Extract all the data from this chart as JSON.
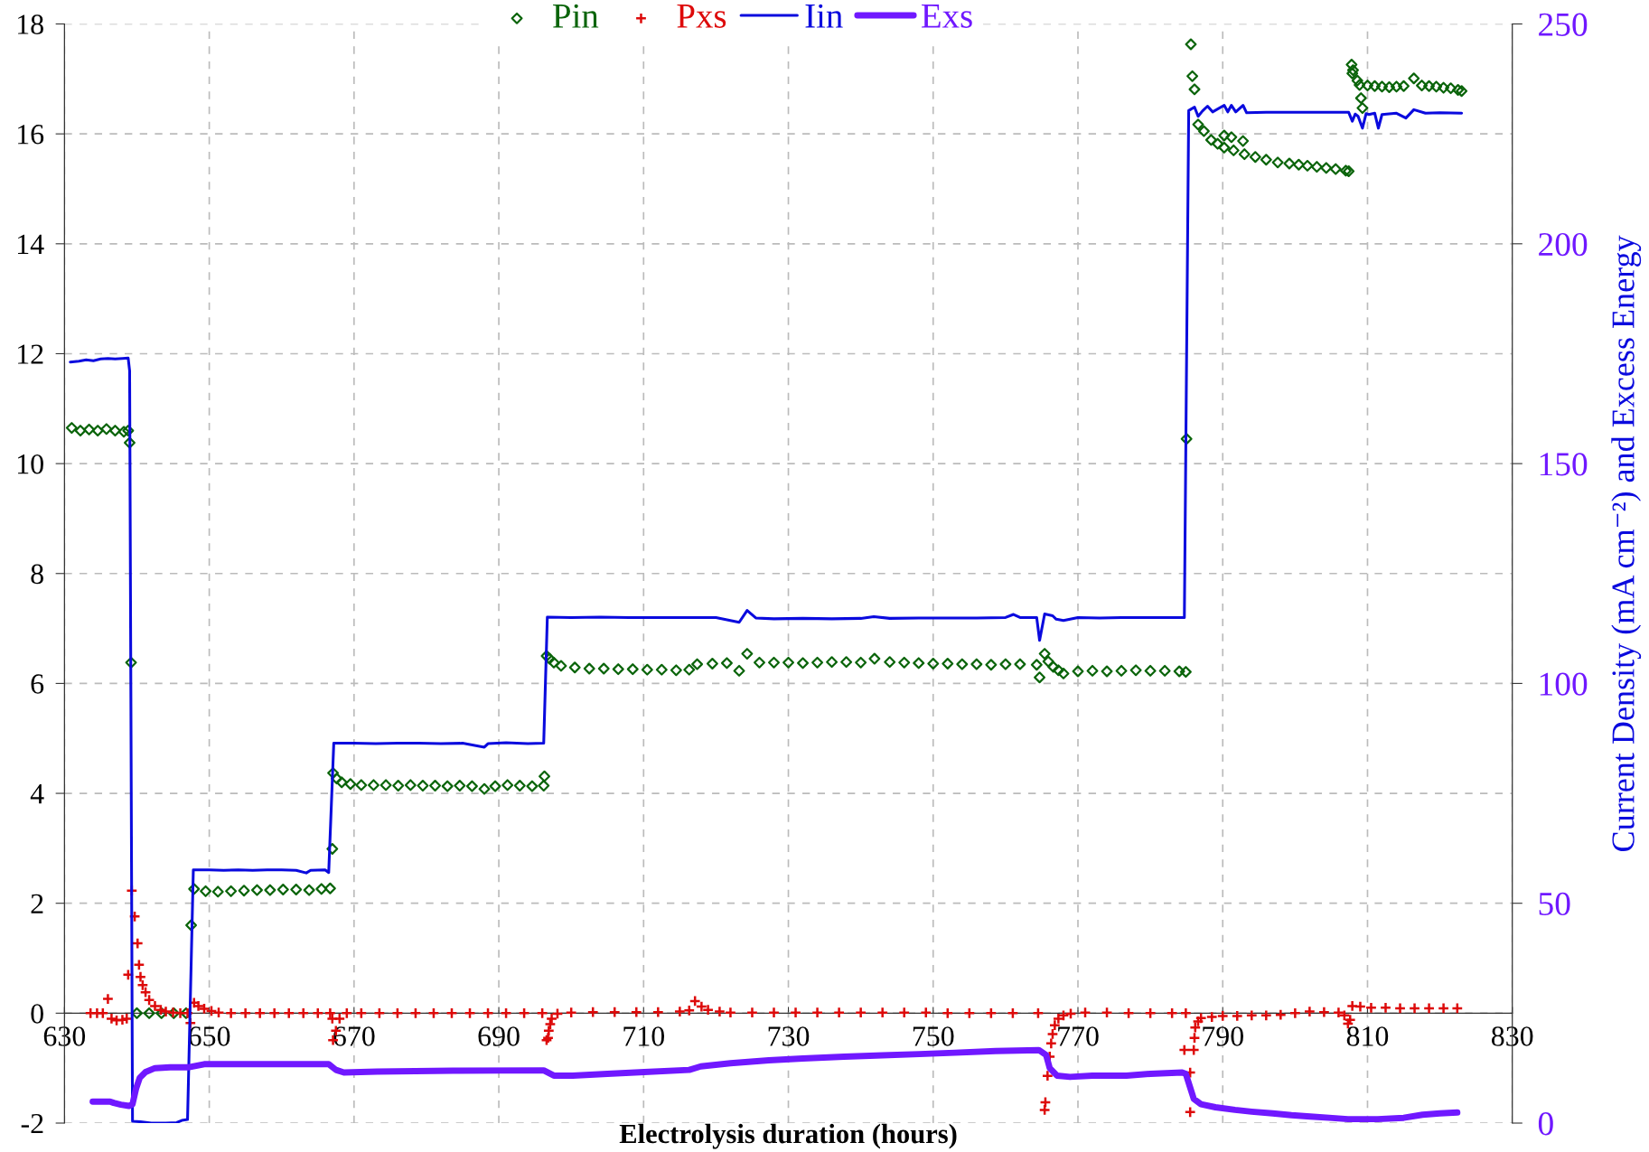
{
  "chart_data": {
    "type": "scatter",
    "xlabel": "Electrolysis duration (hours)",
    "y2label": "Current Density (mA cm⁻²) and Excess Energy",
    "xlim": [
      630,
      830
    ],
    "xticks": [
      630,
      650,
      670,
      690,
      710,
      730,
      750,
      770,
      790,
      810,
      830
    ],
    "ylim": [
      -2,
      18
    ],
    "yticks": [
      -2,
      0,
      2,
      4,
      6,
      8,
      10,
      12,
      14,
      16,
      18
    ],
    "y2lim": [
      0,
      250
    ],
    "y2ticks": [
      0,
      50,
      100,
      150,
      200,
      250
    ],
    "grid": true,
    "legend": "top",
    "series": [
      {
        "name": "Pin",
        "marker": "diamond",
        "color": "#0a640a",
        "x": [
          631.0,
          632.2,
          633.4,
          634.6,
          635.8,
          637.0,
          638.2,
          638.8,
          639.0,
          639.2,
          640.0,
          641.7,
          643.4,
          645.1,
          646.8,
          647.5,
          647.9,
          649.5,
          651.2,
          653.0,
          654.8,
          656.6,
          658.4,
          660.2,
          662.0,
          663.8,
          665.5,
          666.7,
          667.0,
          667.1,
          667.6,
          668.3,
          669.5,
          671.0,
          672.7,
          674.4,
          676.1,
          677.8,
          679.5,
          681.2,
          682.9,
          684.6,
          686.3,
          688.0,
          689.5,
          691.2,
          692.9,
          694.6,
          696.2,
          696.3,
          696.6,
          697.0,
          697.6,
          698.6,
          700.5,
          702.5,
          704.5,
          706.5,
          708.5,
          710.5,
          712.5,
          714.5,
          716.3,
          717.4,
          719.5,
          721.5,
          723.2,
          724.3,
          726.0,
          728.0,
          730.0,
          732.0,
          734.0,
          736.0,
          738.0,
          740.0,
          741.9,
          744.0,
          746.0,
          748.0,
          750.0,
          752.0,
          754.0,
          756.0,
          758.0,
          760.0,
          762.0,
          764.3,
          764.7,
          765.4,
          765.9,
          766.6,
          767.3,
          768.0,
          770.0,
          772.0,
          774.0,
          776.0,
          778.0,
          780.0,
          782.0,
          784.0,
          784.9,
          785.0,
          785.6,
          785.8,
          786.1,
          786.6,
          787.4,
          788.4,
          789.3,
          790.2,
          790.2,
          791.2,
          791.5,
          792.8,
          793.0,
          794.5,
          796.0,
          797.6,
          799.2,
          800.5,
          801.7,
          803.0,
          804.3,
          805.6,
          807.0,
          807.4,
          807.8,
          808.0,
          807.9,
          808.6,
          808.9,
          809.1,
          809.3,
          810.0,
          811.0,
          812.0,
          813.0,
          814.0,
          815.0,
          816.4,
          817.5,
          818.5,
          819.5,
          820.5,
          821.5,
          822.5,
          823.0
        ],
        "values": [
          10.65,
          10.6,
          10.62,
          10.6,
          10.63,
          10.6,
          10.58,
          10.6,
          10.38,
          6.38,
          0,
          0,
          0,
          0,
          0,
          1.6,
          2.26,
          2.22,
          2.21,
          2.22,
          2.23,
          2.24,
          2.24,
          2.25,
          2.25,
          2.24,
          2.26,
          2.27,
          2.99,
          4.37,
          4.27,
          4.2,
          4.17,
          4.15,
          4.15,
          4.15,
          4.14,
          4.15,
          4.14,
          4.14,
          4.13,
          4.14,
          4.13,
          4.08,
          4.13,
          4.15,
          4.14,
          4.13,
          4.14,
          4.31,
          6.5,
          6.45,
          6.38,
          6.32,
          6.29,
          6.27,
          6.27,
          6.26,
          6.26,
          6.25,
          6.25,
          6.24,
          6.25,
          6.35,
          6.36,
          6.37,
          6.23,
          6.54,
          6.38,
          6.38,
          6.38,
          6.37,
          6.38,
          6.39,
          6.39,
          6.38,
          6.45,
          6.39,
          6.38,
          6.37,
          6.36,
          6.36,
          6.35,
          6.35,
          6.34,
          6.35,
          6.35,
          6.34,
          6.11,
          6.54,
          6.4,
          6.3,
          6.24,
          6.18,
          6.22,
          6.23,
          6.22,
          6.23,
          6.24,
          6.23,
          6.23,
          6.22,
          6.21,
          10.45,
          17.63,
          17.05,
          16.81,
          16.17,
          16.05,
          15.89,
          15.82,
          15.75,
          15.97,
          15.94,
          15.7,
          15.87,
          15.63,
          15.58,
          15.53,
          15.48,
          15.46,
          15.44,
          15.42,
          15.4,
          15.38,
          15.36,
          15.33,
          15.32,
          17.26,
          17.16,
          17.1,
          16.97,
          16.89,
          16.65,
          16.47,
          16.88,
          16.87,
          16.86,
          16.85,
          16.86,
          16.87,
          17.01,
          16.88,
          16.87,
          16.86,
          16.84,
          16.83,
          16.8,
          16.78
        ]
      },
      {
        "name": "Pxs",
        "marker": "cross",
        "color": "#dd0a0a",
        "x": [
          633.6,
          634.5,
          635.3,
          636.0,
          636.5,
          637.2,
          638.0,
          638.6,
          638.8,
          639.3,
          639.7,
          640.1,
          640.3,
          640.5,
          640.8,
          641.2,
          641.7,
          642.5,
          643.3,
          644.0,
          645.0,
          646.0,
          647.0,
          647.4,
          647.9,
          648.5,
          649.3,
          650.3,
          651.3,
          653.0,
          655.0,
          657.0,
          659.0,
          661.0,
          663.0,
          665.0,
          666.7,
          667.0,
          667.1,
          667.5,
          668.0,
          669.0,
          671.0,
          673.5,
          676.0,
          678.5,
          681.0,
          683.5,
          686.0,
          688.5,
          691.0,
          693.5,
          696.0,
          696.6,
          696.8,
          696.9,
          697.1,
          697.3,
          698.1,
          700.0,
          703.0,
          706.0,
          709.0,
          712.0,
          715.0,
          716.3,
          717.1,
          718.0,
          718.9,
          720.5,
          722.0,
          725.0,
          728.0,
          731.0,
          734.0,
          737.0,
          740.0,
          743.0,
          746.0,
          749.0,
          752.0,
          755.0,
          758.0,
          761.0,
          764.5,
          765.4,
          765.5,
          765.8,
          766.1,
          766.3,
          766.5,
          766.8,
          767.3,
          768.0,
          769.0,
          771.0,
          774.0,
          777.0,
          780.0,
          783.0,
          784.9,
          784.7,
          785.5,
          785.5,
          786.0,
          786.1,
          786.2,
          786.6,
          787.0,
          788.5,
          790.0,
          792.0,
          794.0,
          796.0,
          798.0,
          800.0,
          802.0,
          804.0,
          806.0,
          806.8,
          807.3,
          807.6,
          807.9,
          809.0,
          810.5,
          812.5,
          814.5,
          816.5,
          818.5,
          820.5,
          822.4
        ],
        "values": [
          0,
          0,
          0,
          0.26,
          -0.1,
          -0.13,
          -0.12,
          -0.1,
          0.7,
          2.23,
          1.76,
          1.27,
          0.88,
          0.66,
          0.51,
          0.38,
          0.24,
          0.13,
          0.06,
          0.03,
          0.01,
          0,
          0,
          -0.18,
          0.19,
          0.13,
          0.08,
          0.04,
          0.01,
          0,
          0,
          0,
          0,
          0,
          0,
          0,
          0,
          -0.1,
          -0.49,
          -0.32,
          -0.1,
          0,
          0,
          0,
          0,
          0,
          0,
          0,
          0,
          0,
          0,
          0,
          0,
          -0.49,
          -0.45,
          -0.32,
          -0.2,
          -0.1,
          -0.01,
          0.01,
          0.02,
          0.02,
          0.02,
          0.02,
          0.03,
          0.05,
          0.22,
          0.12,
          0.06,
          0.03,
          0.01,
          0.01,
          0.01,
          0.01,
          0.01,
          0.01,
          0.01,
          0.01,
          0.01,
          0.01,
          0,
          0,
          0,
          0,
          0,
          -1.76,
          -1.62,
          -1.14,
          -0.79,
          -0.55,
          -0.38,
          -0.22,
          -0.1,
          -0.04,
          -0.01,
          0.01,
          0.01,
          0,
          0,
          0,
          0,
          -0.67,
          -1.08,
          -1.8,
          -0.67,
          -0.45,
          -0.26,
          -0.15,
          -0.09,
          -0.07,
          -0.05,
          -0.05,
          -0.04,
          -0.04,
          -0.03,
          0,
          0.03,
          0.02,
          0.01,
          -0.04,
          -0.19,
          -0.12,
          0.13,
          0.12,
          0.1,
          0.1,
          0.09,
          0.09,
          0.09,
          0.09,
          0.09
        ]
      },
      {
        "name": "Iin",
        "type": "line",
        "axis": "y2",
        "color": "#0a0ade",
        "x": [
          630.8,
          632.0,
          633.0,
          634.0,
          635.0,
          636.0,
          637.0,
          638.0,
          638.8,
          639.0,
          639.4,
          640.5,
          642.0,
          644.0,
          645.5,
          646.2,
          647.0,
          647.8,
          650.0,
          652.0,
          654.0,
          656.0,
          658.0,
          660.0,
          662.0,
          663.4,
          664.0,
          666.0,
          666.5,
          667.2,
          670.0,
          673.0,
          676.0,
          679.0,
          682.0,
          685.0,
          688.0,
          688.5,
          691.0,
          694.0,
          696.2,
          696.7,
          700.0,
          704.0,
          708.0,
          712.0,
          716.0,
          720.0,
          723.2,
          724.3,
          725.5,
          728.0,
          732.0,
          736.0,
          740.0,
          741.8,
          744.0,
          748.0,
          752.0,
          756.0,
          760.0,
          761.1,
          762.0,
          764.3,
          764.7,
          765.4,
          766.5,
          767.0,
          768.0,
          770.0,
          773.0,
          776.0,
          779.0,
          782.0,
          784.7,
          785.3,
          786.1,
          786.6,
          787.2,
          787.9,
          788.6,
          790.2,
          790.7,
          791.2,
          791.8,
          792.8,
          793.3,
          796.0,
          800.0,
          804.0,
          807.4,
          807.9,
          808.3,
          808.7,
          809.3,
          809.8,
          810.2,
          811.0,
          811.5,
          812.0,
          814.0,
          815.3,
          816.4,
          818.0,
          820.0,
          823.0
        ],
        "values": [
          173.1,
          173.3,
          173.6,
          173.4,
          173.8,
          173.9,
          173.8,
          173.9,
          174.0,
          171.1,
          0.4,
          0.3,
          0.0,
          0.0,
          0.1,
          0.6,
          0.8,
          57.6,
          57.6,
          57.5,
          57.6,
          57.5,
          57.6,
          57.6,
          57.5,
          56.9,
          57.5,
          57.6,
          57.0,
          86.4,
          86.4,
          86.3,
          86.4,
          86.4,
          86.3,
          86.4,
          85.5,
          86.3,
          86.5,
          86.3,
          86.4,
          115.1,
          115.0,
          115.1,
          115.0,
          115.0,
          115.0,
          115.0,
          113.9,
          116.6,
          114.9,
          114.7,
          114.8,
          114.7,
          114.8,
          115.2,
          114.8,
          114.9,
          114.9,
          114.9,
          115.0,
          115.7,
          115.0,
          115.0,
          109.8,
          115.8,
          115.4,
          114.6,
          114.3,
          115.0,
          114.9,
          115.0,
          115.0,
          115.0,
          115.0,
          230.3,
          231.1,
          229.0,
          230.2,
          231.3,
          230.0,
          231.5,
          230.0,
          231.5,
          230.0,
          231.5,
          229.8,
          229.9,
          229.9,
          229.9,
          229.9,
          227.9,
          229.5,
          229.0,
          226.3,
          229.6,
          229.4,
          229.7,
          226.3,
          229.4,
          229.7,
          228.6,
          230.5,
          229.7,
          229.8,
          229.7
        ]
      },
      {
        "name": "Exs",
        "type": "line",
        "axis": "y2",
        "color": "#7018ff",
        "x": [
          633.9,
          635.0,
          636.3,
          636.8,
          637.8,
          638.9,
          639.4,
          639.9,
          640.4,
          641.2,
          642.5,
          644.6,
          647.2,
          649.3,
          655.0,
          660.0,
          666.5,
          667.5,
          668.6,
          673.2,
          683.7,
          696.2,
          697.6,
          700.2,
          705.0,
          710.1,
          716.3,
          717.9,
          722.0,
          727.3,
          732.0,
          737.7,
          743.0,
          748.1,
          753.0,
          758.6,
          764.6,
          765.6,
          766.1,
          767.1,
          768.9,
          772.0,
          776.7,
          780.0,
          784.4,
          784.9,
          785.5,
          786.0,
          787.0,
          789.0,
          791.7,
          794.0,
          796.9,
          799.5,
          802.1,
          804.7,
          807.3,
          811.4,
          815.0,
          817.6,
          820.0,
          822.4
        ],
        "values": [
          4.9,
          4.9,
          4.9,
          4.6,
          4.2,
          3.9,
          4.3,
          7.9,
          10.3,
          11.6,
          12.5,
          12.7,
          12.7,
          13.4,
          13.4,
          13.4,
          13.4,
          12.1,
          11.5,
          11.7,
          11.9,
          12.0,
          10.8,
          10.8,
          11.2,
          11.6,
          12.1,
          12.9,
          13.6,
          14.3,
          14.7,
          15.1,
          15.4,
          15.7,
          16.0,
          16.4,
          16.6,
          15.5,
          12.5,
          10.8,
          10.5,
          10.8,
          10.8,
          11.2,
          11.5,
          11.2,
          8.1,
          5.5,
          4.3,
          3.6,
          3.0,
          2.6,
          2.2,
          1.8,
          1.5,
          1.2,
          0.9,
          0.9,
          1.2,
          1.9,
          2.2,
          2.4
        ]
      }
    ]
  }
}
